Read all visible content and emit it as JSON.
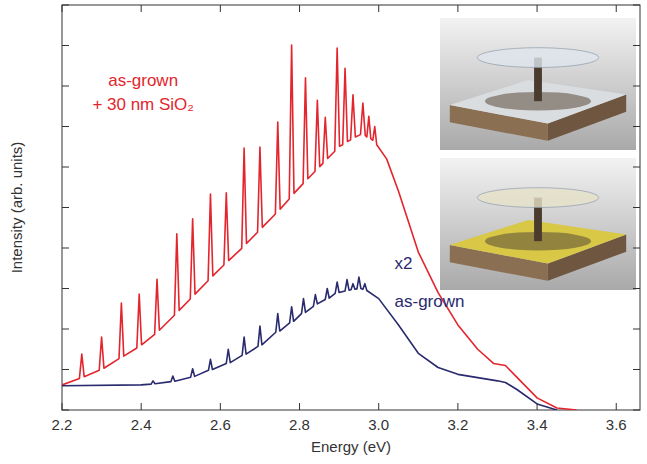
{
  "chart_data": {
    "type": "line",
    "x_label": "Energy (eV)",
    "y_label": "Intensity (arb. units)",
    "xlim": [
      2.2,
      3.66
    ],
    "xticks": [
      2.2,
      2.4,
      2.6,
      2.8,
      {
        "value": 3,
        "label": "3.0"
      },
      3.2,
      3.4,
      3.6
    ],
    "ylim": [
      0,
      10
    ],
    "yticks": [
      0,
      1,
      2,
      3,
      4,
      5,
      6,
      7,
      8,
      9,
      10
    ],
    "tick_labels": "x",
    "grid": false,
    "series": [
      {
        "label_lines": [
          "as-grown",
          "+ 30 nm SiO₂"
        ],
        "color": "#e3262d",
        "x": [
          2.2,
          2.244,
          2.25,
          2.256,
          2.294,
          2.3,
          2.306,
          2.344,
          2.35,
          2.356,
          2.389,
          2.395,
          2.401,
          2.434,
          2.44,
          2.446,
          2.484,
          2.49,
          2.496,
          2.524,
          2.53,
          2.536,
          2.569,
          2.575,
          2.581,
          2.609,
          2.615,
          2.621,
          2.654,
          2.66,
          2.666,
          2.694,
          2.7,
          2.706,
          2.739,
          2.745,
          2.751,
          2.774,
          2.78,
          2.786,
          2.809,
          2.815,
          2.821,
          2.839,
          2.845,
          2.851,
          2.859,
          2.865,
          2.871,
          2.889,
          2.895,
          2.901,
          2.909,
          2.915,
          2.921,
          2.929,
          2.935,
          2.941,
          2.954,
          2.96,
          2.966,
          2.97,
          2.975,
          2.98,
          2.985,
          2.99,
          2.995,
          3.02,
          3.05,
          3.1,
          3.15,
          3.2,
          3.25,
          3.29,
          3.32,
          3.35,
          3.4,
          3.45,
          3.5
        ],
        "values": [
          0.62,
          0.78,
          1.38,
          0.82,
          0.98,
          1.8,
          1.03,
          1.27,
          2.64,
          1.33,
          1.53,
          2.86,
          1.61,
          1.87,
          3.23,
          1.97,
          2.34,
          4.35,
          2.46,
          2.74,
          4.72,
          2.86,
          3.19,
          5.33,
          3.31,
          3.58,
          5.36,
          3.69,
          3.99,
          6.47,
          4.11,
          4.39,
          6.49,
          4.51,
          4.84,
          7.11,
          4.96,
          5.21,
          9.01,
          5.35,
          5.59,
          8.2,
          5.71,
          5.89,
          7.65,
          6.01,
          6.09,
          7.23,
          6.21,
          6.39,
          8.94,
          6.51,
          6.55,
          8.44,
          6.63,
          6.67,
          7.78,
          6.74,
          6.8,
          7.58,
          6.78,
          6.74,
          7.25,
          6.7,
          6.66,
          7.0,
          6.55,
          6.2,
          5.4,
          3.9,
          2.9,
          2.1,
          1.5,
          1.15,
          1.1,
          0.8,
          0.3,
          0.05,
          0.0
        ]
      },
      {
        "label_lines": [
          "as-grown"
        ],
        "scale_label": "x2",
        "color": "#2a2a6e",
        "x": [
          2.2,
          2.4,
          2.425,
          2.43,
          2.435,
          2.475,
          2.48,
          2.485,
          2.525,
          2.53,
          2.535,
          2.57,
          2.575,
          2.58,
          2.615,
          2.62,
          2.625,
          2.655,
          2.66,
          2.665,
          2.695,
          2.7,
          2.705,
          2.74,
          2.745,
          2.75,
          2.775,
          2.78,
          2.785,
          2.805,
          2.81,
          2.815,
          2.835,
          2.84,
          2.845,
          2.865,
          2.87,
          2.875,
          2.89,
          2.895,
          2.9,
          2.915,
          2.92,
          2.925,
          2.93,
          2.935,
          2.94,
          2.945,
          2.95,
          2.955,
          2.96,
          2.965,
          2.97,
          3.0,
          3.05,
          3.1,
          3.15,
          3.2,
          3.25,
          3.3,
          3.32,
          3.35,
          3.4,
          3.45
        ],
        "values": [
          0.6,
          0.62,
          0.64,
          0.72,
          0.65,
          0.7,
          0.84,
          0.71,
          0.81,
          1.02,
          0.83,
          0.98,
          1.25,
          1.0,
          1.15,
          1.5,
          1.17,
          1.35,
          1.8,
          1.38,
          1.57,
          2.07,
          1.61,
          1.92,
          2.38,
          1.95,
          2.15,
          2.55,
          2.19,
          2.38,
          2.75,
          2.41,
          2.56,
          2.85,
          2.62,
          2.73,
          3.0,
          2.76,
          2.88,
          3.16,
          2.9,
          2.94,
          3.22,
          2.96,
          2.97,
          3.12,
          2.98,
          2.99,
          3.28,
          3.0,
          2.98,
          3.12,
          2.95,
          2.75,
          2.1,
          1.4,
          1.05,
          0.88,
          0.8,
          0.72,
          0.68,
          0.5,
          0.15,
          0.0
        ]
      }
    ]
  }
}
